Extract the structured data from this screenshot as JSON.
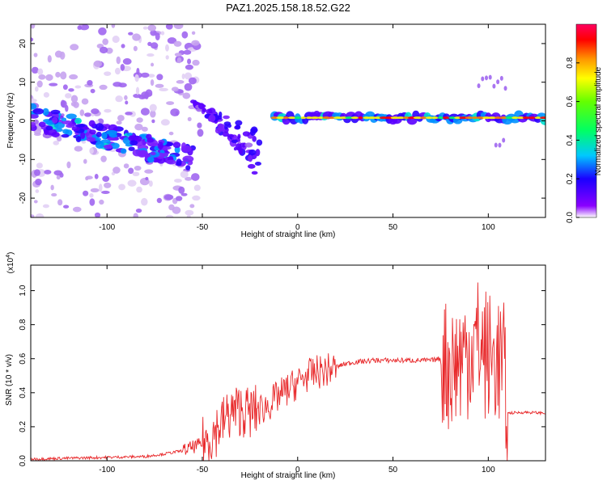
{
  "title": "PAZ1.2025.158.18.52.G22",
  "chart_data": [
    {
      "type": "heatmap",
      "xlabel": "Height of straight line (km)",
      "ylabel": "Frequency (Hz)",
      "xlim": [
        -140,
        130
      ],
      "ylim": [
        -25,
        25
      ],
      "xticks": [
        -100,
        -50,
        0,
        50,
        100
      ],
      "yticks": [
        20,
        10,
        0,
        -10,
        -20
      ],
      "colorbar": {
        "label": "Normalized spectral amplitude",
        "range": [
          0.0,
          1.0
        ],
        "ticks": [
          0.0,
          0.2,
          0.4,
          0.6,
          0.8
        ],
        "colormap": "rainbow (purple to red)"
      },
      "features": [
        {
          "name": "carrier",
          "x": [
            -12,
            130
          ],
          "frequency": 0.8,
          "amplitude": 1.0
        },
        {
          "name": "descending branch",
          "x": [
            -140,
            -55
          ],
          "frequency_start": 1,
          "frequency_end": -10,
          "amplitude": 0.4
        },
        {
          "name": "secondary branches",
          "x": [
            -55,
            -20
          ],
          "frequency_range": [
            -15,
            5
          ],
          "amplitude": 0.3
        },
        {
          "name": "noise scatter",
          "x": [
            -140,
            -70
          ],
          "frequency_range": [
            -25,
            25
          ],
          "amplitude": 0.1
        }
      ]
    },
    {
      "type": "line",
      "xlabel": "Height of straight line (km)",
      "ylabel": "SNR (10 * v/v)",
      "ylabel_scale": "(x10",
      "ylabel_scale_exp": "4",
      "ylabel_scale_close": ")",
      "xlim": [
        -140,
        130
      ],
      "ylim": [
        0,
        1.15
      ],
      "xticks": [
        -100,
        -50,
        0,
        50,
        100
      ],
      "yticks": [
        0.0,
        0.2,
        0.4,
        0.6,
        0.8,
        1.0
      ],
      "series": [
        {
          "color": "#e8282a",
          "x": [
            -140,
            -120,
            -100,
            -80,
            -70,
            -60,
            -50,
            -45,
            -40,
            -35,
            -30,
            -25,
            -20,
            -15,
            -10,
            -5,
            0,
            5,
            10,
            15,
            20,
            25,
            30,
            40,
            50,
            60,
            70,
            75,
            80,
            85,
            90,
            95,
            100,
            105,
            108,
            110,
            120,
            130
          ],
          "y": [
            0.01,
            0.015,
            0.02,
            0.025,
            0.04,
            0.06,
            0.1,
            0.15,
            0.22,
            0.28,
            0.3,
            0.28,
            0.3,
            0.33,
            0.38,
            0.42,
            0.46,
            0.5,
            0.52,
            0.53,
            0.55,
            0.57,
            0.58,
            0.59,
            0.59,
            0.59,
            0.59,
            0.6,
            0.55,
            0.6,
            0.65,
            0.7,
            0.6,
            0.6,
            0.55,
            0.28,
            0.285,
            0.28
          ]
        }
      ]
    }
  ]
}
